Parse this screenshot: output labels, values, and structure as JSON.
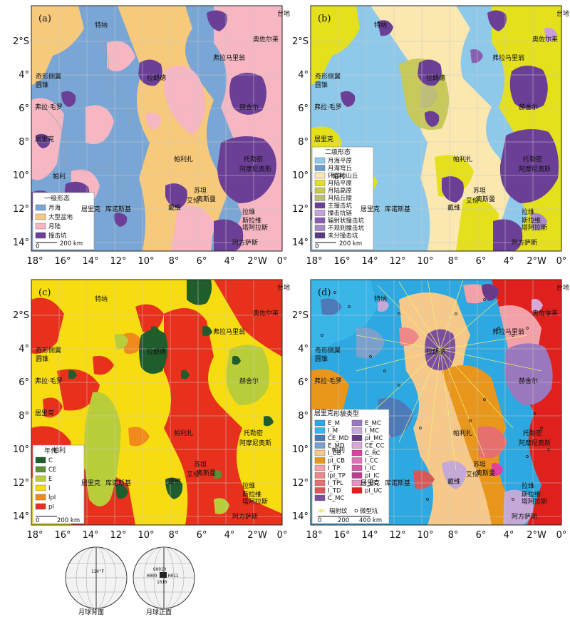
{
  "panels": [
    {
      "id": "a",
      "letter": "(a)",
      "legend_title": "一级形态",
      "legend": [
        {
          "label": "月海",
          "color": "#7aa6d6"
        },
        {
          "label": "大型盆地",
          "color": "#f7c97b"
        },
        {
          "label": "月陆",
          "color": "#f6b6c2"
        },
        {
          "label": "撞击坑",
          "color": "#6c3f96"
        }
      ],
      "scale_label": "200 km"
    },
    {
      "id": "b",
      "letter": "(b)",
      "legend_title": "二级形态",
      "legend": [
        {
          "label": "月海平原",
          "color": "#8fc9ea"
        },
        {
          "label": "月海穹丘",
          "color": "#6b9bcf"
        },
        {
          "label": "环盆地山丘",
          "color": "#fbe8b0"
        },
        {
          "label": "月陆平原",
          "color": "#e4e01c"
        },
        {
          "label": "月陆高原",
          "color": "#c7c95a"
        },
        {
          "label": "月陆丘陵",
          "color": "#bcbd78"
        },
        {
          "label": "主撞击坑",
          "color": "#6c3f96"
        },
        {
          "label": "撞击坑链",
          "color": "#c9a0dc"
        },
        {
          "label": "辐射状撞击坑",
          "color": "#8b5fb0"
        },
        {
          "label": "不规则撞击坑",
          "color": "#a789c4"
        },
        {
          "label": "未分撞击坑",
          "color": "#5a3a82"
        }
      ],
      "scale_label": "200 km"
    },
    {
      "id": "c",
      "letter": "(c)",
      "legend_title": "年代",
      "legend": [
        {
          "label": "C",
          "color": "#1f5e2c"
        },
        {
          "label": "CE",
          "color": "#5e8f37"
        },
        {
          "label": "E",
          "color": "#b9cd3a"
        },
        {
          "label": "I",
          "color": "#f6dc10"
        },
        {
          "label": "lpI",
          "color": "#f08a1c"
        },
        {
          "label": "pI",
          "color": "#e8311c"
        }
      ],
      "scale_label": "200 km"
    },
    {
      "id": "d",
      "letter": "(d)",
      "legend_title": "形貌类型",
      "legend": [
        {
          "label": "E_M",
          "color": "#2ea8e0"
        },
        {
          "label": "I_M",
          "color": "#39b5e8"
        },
        {
          "label": "CE_MD",
          "color": "#4c7ab8"
        },
        {
          "label": "E_MD",
          "color": "#7aa0cc"
        },
        {
          "label": "I_CB",
          "color": "#f6c98a"
        },
        {
          "label": "pI_CB",
          "color": "#e8961c"
        },
        {
          "label": "I_TP",
          "color": "#f4a0a8"
        },
        {
          "label": "lpI_TP",
          "color": "#ee8888"
        },
        {
          "label": "I_TPL",
          "color": "#e67070"
        },
        {
          "label": "I_TD",
          "color": "#d65858"
        },
        {
          "label": "C_MC",
          "color": "#7b4fa0"
        },
        {
          "label": "E_MC",
          "color": "#9a78bd"
        },
        {
          "label": "I_MC",
          "color": "#c4a8d8"
        },
        {
          "label": "pI_MC",
          "color": "#6a3a8a"
        },
        {
          "label": "CE_CC",
          "color": "#d9a8d9"
        },
        {
          "label": "C_RC",
          "color": "#e040a0"
        },
        {
          "label": "I_CC",
          "color": "#e070b8"
        },
        {
          "label": "I_IC",
          "color": "#d858a8"
        },
        {
          "label": "pI_IC",
          "color": "#c83890"
        },
        {
          "label": "I_UC",
          "color": "#e890c0"
        },
        {
          "label": "pI_UC",
          "color": "#e0201c"
        }
      ],
      "ray_label": "辐射纹",
      "micro_label": "微型坑",
      "scale_labels": [
        "0",
        "200",
        "400 km"
      ]
    }
  ],
  "x_ticks": [
    "18°",
    "16°",
    "14°",
    "12°",
    "10°",
    "8°",
    "6°",
    "4°",
    "2°W",
    "0°"
  ],
  "y_ticks": [
    "2°S",
    "4°",
    "6°",
    "8°",
    "10°",
    "12°",
    "14°"
  ],
  "places": {
    "platform": "台地",
    "tener": "特纳",
    "ozort": "奥佐尔莱",
    "flammarion": "弗拉马里翁",
    "lalande": "拉朗德",
    "dome": "奇形侧翼",
    "dome2": "圆锥",
    "fra_mauro": "弗拉·毛罗",
    "herschel": "赫舍尔",
    "parry": "帕利",
    "bonpland": "帕利扎",
    "ptolemaeus": "托勒密",
    "alphonsus": "阿摩尼奥斯",
    "guericke": "居里克",
    "kunowsky": "库诺斯基",
    "davy": "戴维",
    "lassell": "艾伦",
    "alpetragius": "奥斯曼",
    "lade": "苏坦",
    "alpetr2": "拉维",
    "arzachel": "阿方萨斯",
    "thebit": "斯拉维",
    "harpalus": "塔阿拉斯"
  },
  "globes": {
    "far_side_label": "月球背面",
    "near_side_label": "月球正面",
    "far_code": "110°F",
    "near_codes": [
      "G0910",
      "H009",
      "H011",
      "1010"
    ]
  }
}
